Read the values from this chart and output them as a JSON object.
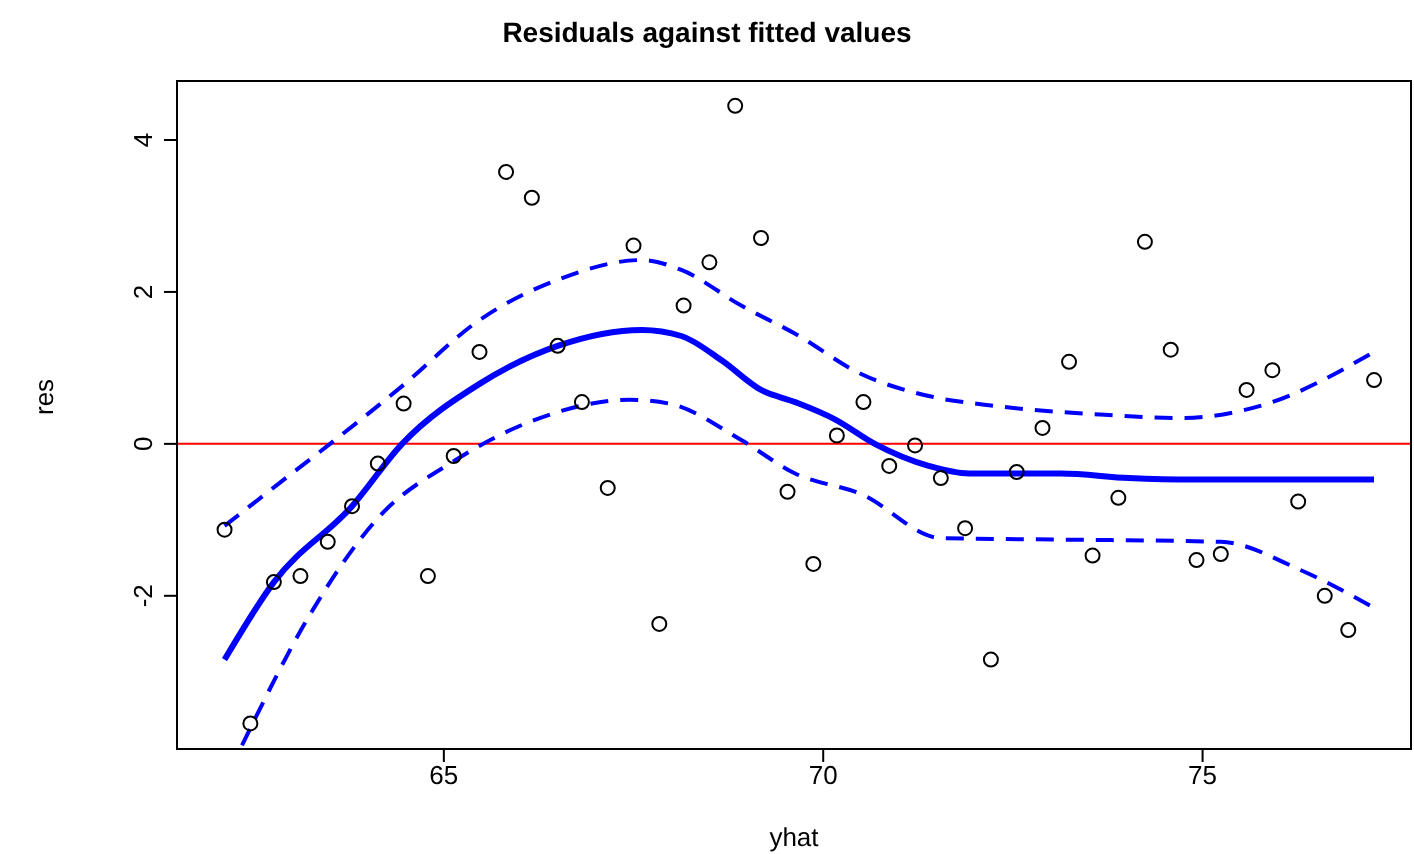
{
  "chart_data": {
    "type": "scatter",
    "title": "Residuals against fitted values",
    "xlabel": "yhat",
    "ylabel": "res",
    "xlim": [
      61.47,
      77.76
    ],
    "ylim": [
      -4.03,
      4.79
    ],
    "xticks": [
      65,
      70,
      75
    ],
    "yticks": [
      -2,
      0,
      2,
      4
    ],
    "grid": false,
    "legend": false,
    "ref_lines": [
      {
        "axis": "y",
        "value": 0,
        "color": "#ff0000"
      }
    ],
    "series": [
      {
        "color": "#000000",
        "marker": "circle",
        "x": [
          62.11,
          62.45,
          62.76,
          63.11,
          63.47,
          63.79,
          64.13,
          64.47,
          64.79,
          65.13,
          65.47,
          65.82,
          66.16,
          66.5,
          66.82,
          67.16,
          67.5,
          67.84,
          68.16,
          68.5,
          68.84,
          69.18,
          69.53,
          69.87,
          70.18,
          70.53,
          70.87,
          71.21,
          71.55,
          71.87,
          72.21,
          72.55,
          72.89,
          73.24,
          73.55,
          73.89,
          74.24,
          74.58,
          74.92,
          75.24,
          75.58,
          75.92,
          76.26,
          76.61,
          76.92,
          77.26
        ],
        "values": [
          -1.13,
          -3.68,
          -1.82,
          -1.74,
          -1.29,
          -0.82,
          -0.26,
          0.53,
          -1.74,
          -0.16,
          1.21,
          3.58,
          3.24,
          1.29,
          0.55,
          -0.58,
          2.61,
          -2.37,
          1.82,
          2.39,
          4.45,
          2.71,
          -0.63,
          -1.58,
          0.11,
          0.55,
          -0.29,
          -0.02,
          -0.45,
          -1.11,
          -2.84,
          -0.37,
          0.21,
          1.08,
          -1.47,
          -0.71,
          2.66,
          1.24,
          -1.53,
          -1.45,
          0.71,
          0.97,
          -0.76,
          -2.0,
          -2.45,
          0.84
        ]
      },
      {
        "type": "line",
        "color": "#0000ff",
        "line_style": "solid",
        "marker": "none",
        "x": [
          62.11,
          62.76,
          63.79,
          64.45,
          65.47,
          66.5,
          67.61,
          68.13,
          68.66,
          69.18,
          69.63,
          70.16,
          70.68,
          71.39,
          71.92,
          73.13,
          74.03,
          74.89,
          77.26
        ],
        "values": [
          -2.84,
          -1.82,
          -0.82,
          0,
          0.79,
          1.29,
          1.5,
          1.42,
          1.1,
          0.71,
          0.55,
          0.32,
          0,
          -0.29,
          -0.39,
          -0.39,
          -0.45,
          -0.47,
          -0.47
        ]
      },
      {
        "type": "line",
        "color": "#0000ff",
        "line_style": "dashed",
        "marker": "none",
        "x": [
          62.11,
          62.79,
          63.5,
          64.45,
          65.47,
          66.5,
          67.61,
          68.13,
          68.92,
          69.63,
          70.5,
          71.39,
          72.26,
          73.58,
          74.71,
          75.76,
          77.26
        ],
        "values": [
          -1.08,
          -0.55,
          0,
          0.76,
          1.63,
          2.16,
          2.42,
          2.29,
          1.82,
          1.45,
          0.92,
          0.63,
          0.5,
          0.39,
          0.34,
          0.5,
          1.21
        ]
      },
      {
        "type": "line",
        "color": "#0000ff",
        "line_style": "dashed",
        "marker": "none",
        "x": [
          62.34,
          63.24,
          64.11,
          65.16,
          66.21,
          67.45,
          67.97,
          68.92,
          69.63,
          70.5,
          71.55,
          73.13,
          75.24,
          76.29,
          77.21
        ],
        "values": [
          -3.97,
          -2.24,
          -1.0,
          -0.21,
          0.32,
          0.58,
          0.53,
          0.05,
          -0.39,
          -0.66,
          -1.24,
          -1.26,
          -1.29,
          -1.66,
          -2.13
        ]
      }
    ]
  }
}
